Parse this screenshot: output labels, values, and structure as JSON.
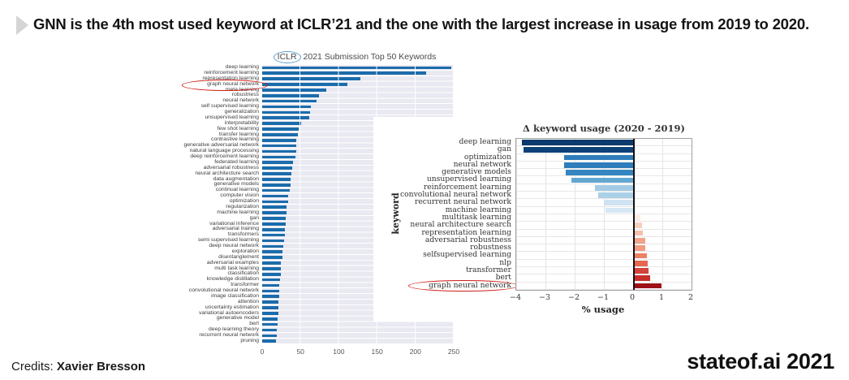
{
  "header": {
    "title": "GNN is the 4th most used keyword at ICLR’21 and the one with the largest increase in usage from 2019 to 2020."
  },
  "footer": {
    "credits_label": "Credits:",
    "credits_name": "Xavier Bresson",
    "brand": "stateof.ai 2021"
  },
  "annotation_colors": {
    "highlight_ellipse": "#cf1f16",
    "title_ellipse": "#5b9fd0"
  },
  "chart_data": [
    {
      "type": "bar",
      "orientation": "horizontal",
      "title": "ICLR 2021 Submission Top 50 Keywords",
      "title_circled_word": "ICLR",
      "title_rest": " 2021 Submission Top 50 Keywords",
      "xlabel": "",
      "ylabel": "",
      "xlim": [
        0,
        250
      ],
      "xticks": [
        0,
        50,
        100,
        150,
        200,
        250
      ],
      "bar_color": "#1b6cab",
      "plot_bg": "#e9e9f2",
      "highlight_category": "graph neural network",
      "categories": [
        "deep learning",
        "reinforcement learning",
        "representation learning",
        "graph neural network",
        "meta learning",
        "robustness",
        "neural network",
        "self supervised learning",
        "generalization",
        "unsupervised learning",
        "interpretability",
        "few shot learning",
        "transfer learning",
        "contrastive learning",
        "generative adversarial network",
        "natural language processing",
        "deep reinforcement learning",
        "federated learning",
        "adversarial robustness",
        "neural architecture search",
        "data augmentation",
        "generative models",
        "continual learning",
        "computer vision",
        "optimization",
        "regularization",
        "machine learning",
        "gan",
        "variational inference",
        "adversarial training",
        "transformers",
        "semi supervised learning",
        "deep neural network",
        "exploration",
        "disentanglement",
        "adversarial examples",
        "multi task learning",
        "classification",
        "knowledge distillation",
        "transformer",
        "convolutional neural network",
        "image classification",
        "attention",
        "uncertainty estimation",
        "variational autoencoders",
        "generative model",
        "bert",
        "deep learning theory",
        "recurrent neural network",
        "pruning"
      ],
      "values": [
        247,
        214,
        128,
        111,
        84,
        74,
        71,
        64,
        62,
        61,
        51,
        48,
        47,
        45,
        44,
        44,
        43,
        40,
        39,
        38,
        37,
        37,
        36,
        34,
        34,
        32,
        32,
        31,
        31,
        30,
        30,
        29,
        28,
        26,
        26,
        24,
        24,
        24,
        23,
        22,
        22,
        22,
        21,
        21,
        21,
        20,
        20,
        19,
        19,
        18
      ]
    },
    {
      "type": "bar",
      "orientation": "horizontal",
      "title": "Δ keyword usage (2020 - 2019)",
      "xlabel": "% usage",
      "ylabel": "keyword",
      "xlim": [
        -4,
        2
      ],
      "xticks": [
        -4,
        -3,
        -2,
        -1,
        0,
        1,
        2
      ],
      "highlight_category": "graph neural network",
      "categories": [
        "deep learning",
        "gan",
        "optimization",
        "neural network",
        "generative models",
        "unsupervised learning",
        "reinforcement learning",
        "convolutional neural network",
        "recurrent neural network",
        "machine learning",
        "multitask learning",
        "neural architecture search",
        "representation learning",
        "adversarial robustness",
        "robustness",
        "selfsupervised learning",
        "nlp",
        "transformer",
        "bert",
        "graph neural network"
      ],
      "values": [
        -3.8,
        -3.75,
        -2.35,
        -2.35,
        -2.3,
        -2.1,
        -1.3,
        -1.2,
        -1.0,
        -0.95,
        0.25,
        0.3,
        0.33,
        0.42,
        0.42,
        0.47,
        0.5,
        0.53,
        0.58,
        0.97
      ],
      "colors": [
        "#0b3a6f",
        "#0d4179",
        "#2e7cba",
        "#2e7cba",
        "#3586c0",
        "#62a6d2",
        "#a3cbe5",
        "#abd0e7",
        "#cfe2f2",
        "#d6e7f4",
        "#fcece4",
        "#f8cfbe",
        "#f6c0ab",
        "#f2a38a",
        "#f09c82",
        "#ee8166",
        "#e7664f",
        "#d4423a",
        "#c52f2b",
        "#9d1118"
      ]
    }
  ]
}
